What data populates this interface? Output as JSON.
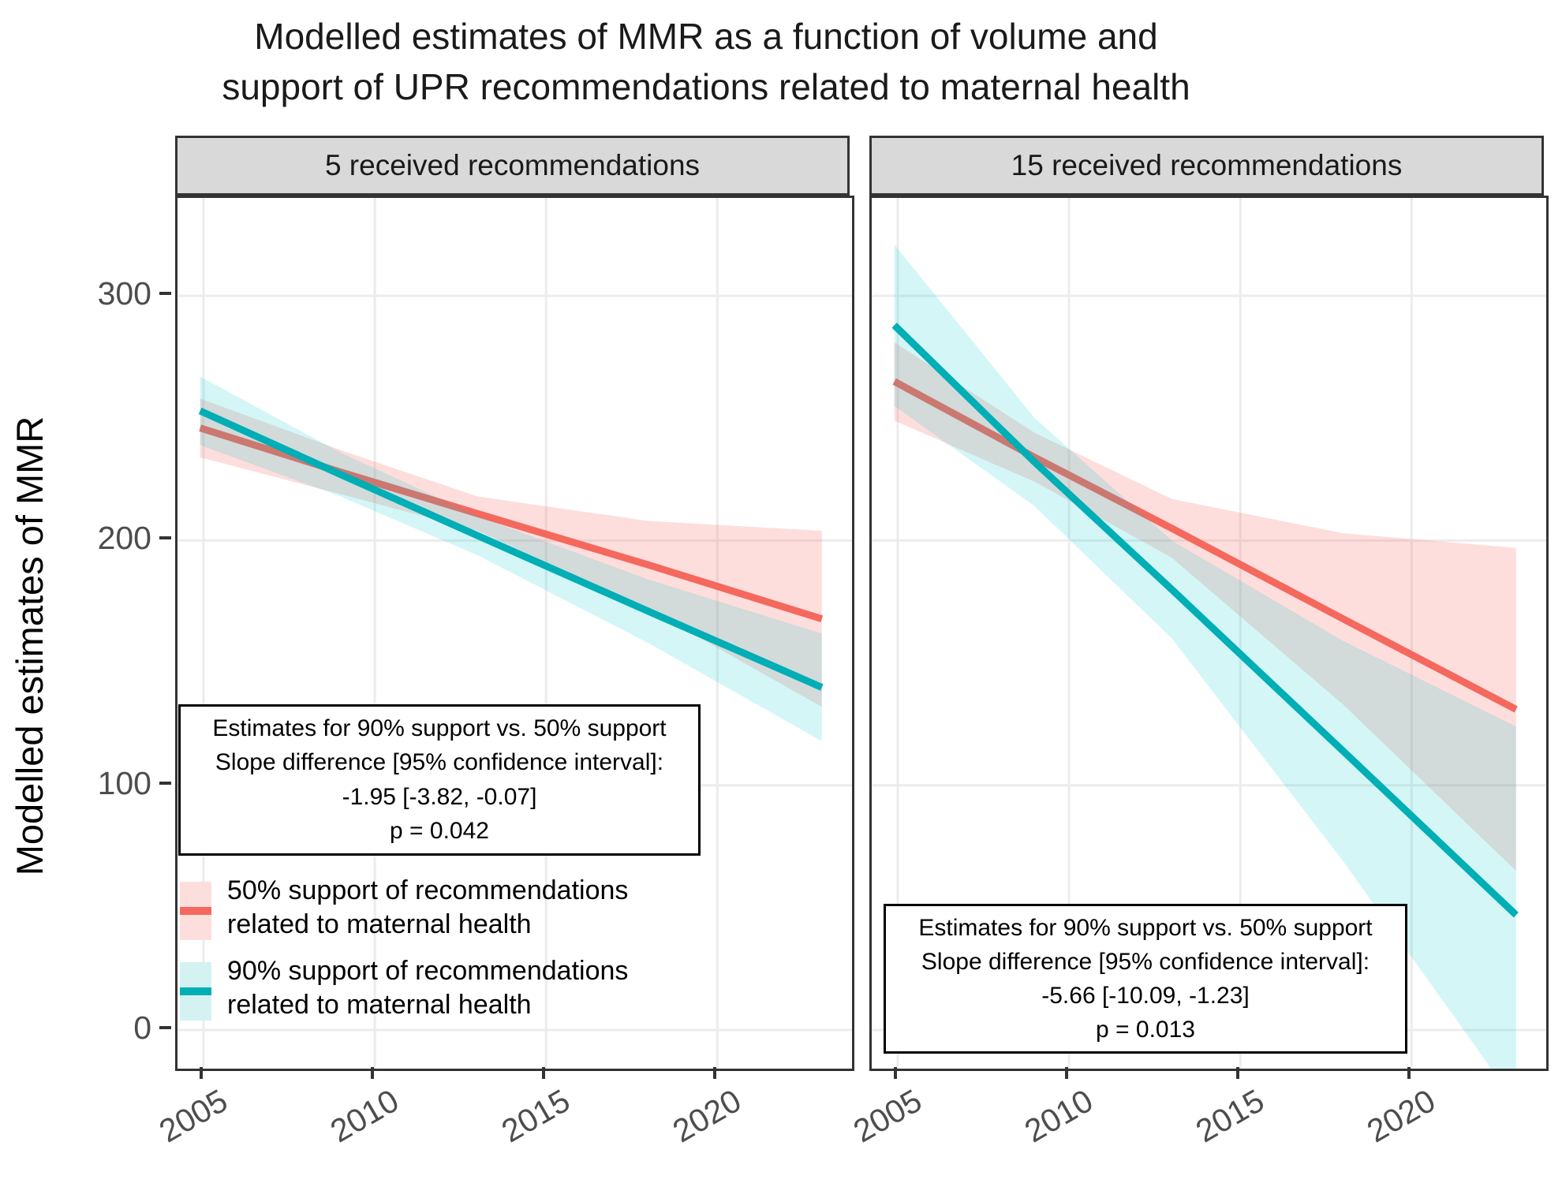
{
  "title": {
    "line1": "Modelled estimates of MMR as a function of volume and",
    "line2": "support of UPR recommendations related to maternal health"
  },
  "chart_data": {
    "type": "line",
    "title": "Modelled estimates of MMR as a function of volume and support of UPR recommendations related to maternal health",
    "xlabel": "",
    "ylabel": "Modelled estimates of MMR",
    "x_range": [
      2004.24,
      2023.93
    ],
    "y_range": [
      -15.8,
      340
    ],
    "x_ticks": [
      2005,
      2010,
      2015,
      2020
    ],
    "y_ticks": [
      0,
      100,
      200,
      300
    ],
    "grid": "major-only",
    "gridline_color": "#ECECEC",
    "legend_position": "inside-left-panel",
    "panels": [
      {
        "label": "5 received recommendations",
        "annotation": {
          "lines": [
            "Estimates for 90% support vs. 50% support",
            "Slope difference [95% confidence interval]:",
            "-1.95 [-3.82, -0.07]",
            "p = 0.042"
          ],
          "slope_difference": -1.95,
          "ci_95": [
            -3.82,
            -0.07
          ],
          "p_value": 0.042
        },
        "series": [
          {
            "name": "50% support of recommendations related to maternal health",
            "color": "#F4685E",
            "fill": "#F8766D",
            "fill_opacity": 0.24,
            "x": [
              2004.9,
              2009,
              2013,
              2018,
              2023.05
            ],
            "y": [
              246,
              228,
              211,
              190,
              168
            ],
            "upper": [
              258,
              237,
              218,
              208,
              204
            ],
            "lower": [
              234,
              219,
              204,
              172,
              132
            ]
          },
          {
            "name": "90% support of recommendations related to maternal health",
            "color": "#00AEB5",
            "fill": "#00C8CD",
            "fill_opacity": 0.17,
            "x": [
              2004.9,
              2009,
              2013,
              2018,
              2023.05
            ],
            "y": [
              253,
              227,
              202,
              171,
              140
            ],
            "upper": [
              267,
              236,
              210,
              184,
              162
            ],
            "lower": [
              239,
              218,
              194,
              158,
              118
            ]
          }
        ]
      },
      {
        "label": "15 received recommendations",
        "annotation": {
          "lines": [
            "Estimates for 90% support vs. 50% support",
            "Slope difference [95% confidence interval]:",
            "-5.66 [-10.09, -1.23]",
            "p = 0.013"
          ],
          "slope_difference": -5.66,
          "ci_95": [
            -10.09,
            -1.23
          ],
          "p_value": 0.013
        },
        "series": [
          {
            "name": "50% support of recommendations related to maternal health",
            "color": "#F4685E",
            "fill": "#F8766D",
            "fill_opacity": 0.24,
            "x": [
              2004.9,
              2009,
              2013,
              2018,
              2023.05
            ],
            "y": [
              265,
              234,
              205,
              168,
              131
            ],
            "upper": [
              281,
              244,
              217,
              203,
              197
            ],
            "lower": [
              249,
              224,
              193,
              133,
              65
            ]
          },
          {
            "name": "90% support of recommendations related to maternal health",
            "color": "#00AEB5",
            "fill": "#00C8CD",
            "fill_opacity": 0.17,
            "x": [
              2004.9,
              2009,
              2013,
              2018,
              2023.05
            ],
            "y": [
              288,
              232,
              180,
              114,
              47
            ],
            "upper": [
              321,
              250,
              200,
              159,
              124
            ],
            "lower": [
              255,
              214,
              160,
              69,
              -30
            ]
          }
        ]
      }
    ],
    "legend": [
      {
        "line1": "50% support of recommendations",
        "line2": "related to maternal health",
        "swatch_fill": "#FCDFDC",
        "line_color": "#F4685E"
      },
      {
        "line1": "90% support of recommendations",
        "line2": "related to maternal health",
        "swatch_fill": "#D4F2F1",
        "line_color": "#00AEB5"
      }
    ]
  },
  "axis": {
    "y_label": "Modelled estimates of MMR"
  }
}
